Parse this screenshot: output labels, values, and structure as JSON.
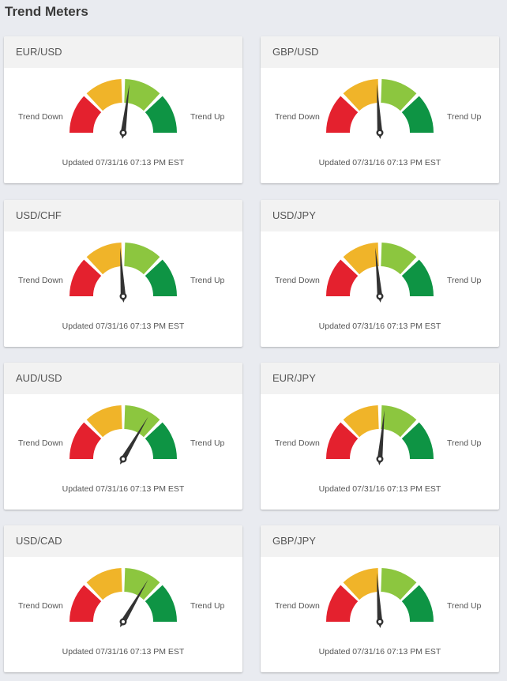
{
  "page": {
    "title": "Trend Meters"
  },
  "colors": {
    "segments": [
      "#e4212e",
      "#f0b429",
      "#8cc63f",
      "#0e9444"
    ],
    "needle": "#333333"
  },
  "labels": {
    "trend_down": "Trend Down",
    "trend_up": "Trend Up"
  },
  "meters": [
    {
      "pair": "EUR/USD",
      "needle_fraction": 0.54,
      "updated": "Updated 07/31/16 07:13 PM EST"
    },
    {
      "pair": "GBP/USD",
      "needle_fraction": 0.48,
      "updated": "Updated 07/31/16 07:13 PM EST"
    },
    {
      "pair": "USD/CHF",
      "needle_fraction": 0.48,
      "updated": "Updated 07/31/16 07:13 PM EST"
    },
    {
      "pair": "USD/JPY",
      "needle_fraction": 0.47,
      "updated": "Updated 07/31/16 07:13 PM EST"
    },
    {
      "pair": "AUD/USD",
      "needle_fraction": 0.67,
      "updated": "Updated 07/31/16 07:13 PM EST"
    },
    {
      "pair": "EUR/JPY",
      "needle_fraction": 0.53,
      "updated": "Updated 07/31/16 07:13 PM EST"
    },
    {
      "pair": "USD/CAD",
      "needle_fraction": 0.67,
      "updated": "Updated 07/31/16 07:13 PM EST"
    },
    {
      "pair": "GBP/JPY",
      "needle_fraction": 0.48,
      "updated": "Updated 07/31/16 07:13 PM EST"
    }
  ]
}
